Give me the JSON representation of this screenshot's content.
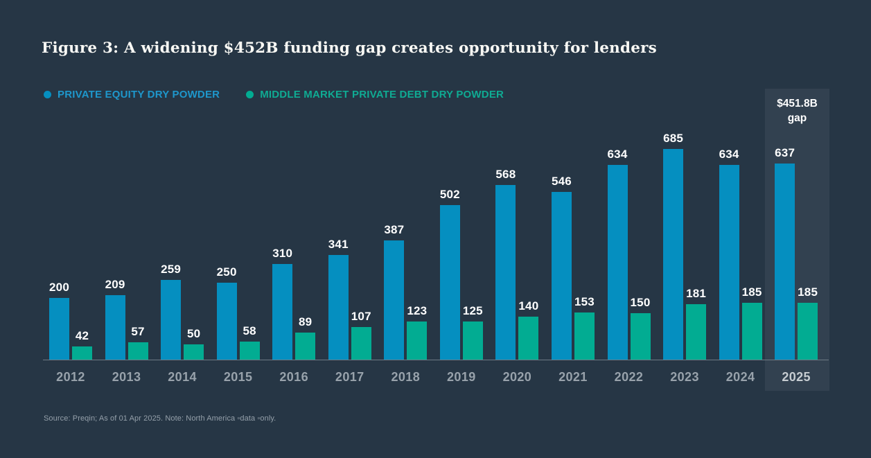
{
  "title": "Figure 3: A widening $452B funding gap creates opportunity for lenders",
  "legend": [
    {
      "label": "PRIVATE EQUITY DRY POWDER",
      "color": "#1e97cb"
    },
    {
      "label": "MIDDLE MARKET PRIVATE DEBT DRY POWDER",
      "color": "#0fab93"
    }
  ],
  "chart_data": {
    "type": "bar",
    "categories": [
      "2012",
      "2013",
      "2014",
      "2015",
      "2016",
      "2017",
      "2018",
      "2019",
      "2020",
      "2021",
      "2022",
      "2023",
      "2024",
      "2025"
    ],
    "series": [
      {
        "id": "private-equity-dry-powder",
        "name": "Private equity dry powder",
        "color": "#058fc0",
        "values": [
          200,
          209,
          259,
          250,
          310,
          341,
          387,
          502,
          568,
          546,
          634,
          685,
          634,
          637
        ]
      },
      {
        "id": "middle-market-private-debt-dry-powder",
        "name": "Middle market private debt dry powder",
        "color": "#02ac92",
        "values": [
          42,
          57,
          50,
          58,
          89,
          107,
          123,
          125,
          140,
          153,
          150,
          181,
          185,
          185
        ]
      }
    ],
    "value_labels": true,
    "highlight_category": "2025",
    "annotation": {
      "line1": "$451.8B",
      "line2": "gap",
      "target": "2025"
    },
    "title": "Figure 3: A widening $452B funding gap creates opportunity for lenders",
    "xlabel": "",
    "ylabel": "",
    "ylim": [
      0,
      700
    ],
    "grid": false,
    "legend_position": "top-left"
  },
  "source": "Source: Preqin; As of 01 Apr 2025. Note: North America ▫data ▫only.",
  "colors": {
    "background": "#263645",
    "highlight_column": "#324150",
    "title_text": "#f8f8f4",
    "value_label_text": "#ffffff",
    "axis_line": "#6e7a85",
    "year_label_text": "#98a2ab",
    "year_label_highlight_text": "#c6ccd1",
    "source_text": "#95a0aa"
  }
}
